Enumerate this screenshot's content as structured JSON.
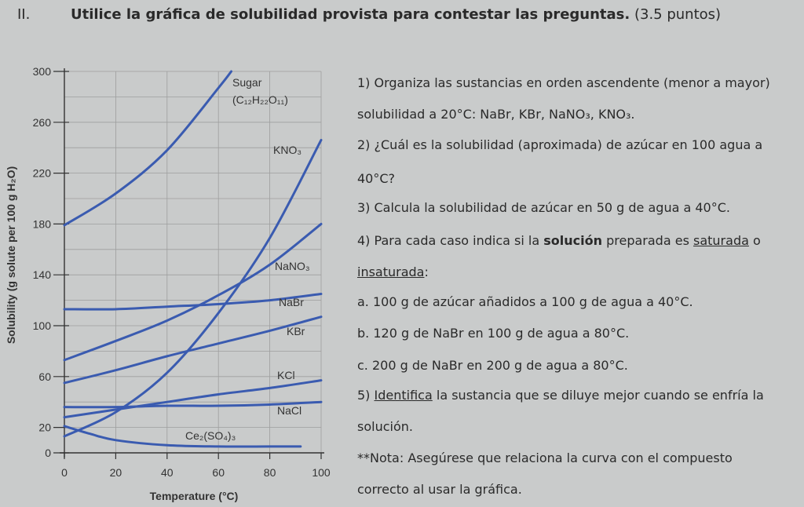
{
  "header": {
    "section": "II.",
    "title": "Utilice la gráfica de solubilidad provista para contestar las preguntas.",
    "points": "(3.5 puntos)"
  },
  "chart_data": {
    "type": "line",
    "xlabel": "Temperature (°C)",
    "ylabel": "Solubility (g solute per 100 g H₂O)",
    "xlim": [
      0,
      100
    ],
    "ylim": [
      0,
      300
    ],
    "xticks": [
      "0",
      "20",
      "40",
      "60",
      "80",
      "100"
    ],
    "yticks": [
      "0",
      "20",
      "60",
      "100",
      "140",
      "180",
      "220",
      "260",
      "300"
    ],
    "grid": true,
    "series": [
      {
        "name": "Sugar",
        "formula": "(C₁₂H₂₂O₁₁)",
        "x": [
          0,
          20,
          40,
          60,
          65
        ],
        "y": [
          179,
          204,
          238,
          287,
          300
        ]
      },
      {
        "name": "KNO₃",
        "x": [
          0,
          20,
          40,
          60,
          80,
          100
        ],
        "y": [
          13,
          32,
          63,
          110,
          169,
          246
        ]
      },
      {
        "name": "NaNO₃",
        "x": [
          0,
          20,
          40,
          60,
          80,
          100
        ],
        "y": [
          73,
          88,
          104,
          124,
          148,
          180
        ]
      },
      {
        "name": "NaBr",
        "x": [
          0,
          20,
          40,
          60,
          80,
          100
        ],
        "y": [
          113,
          113,
          115,
          117,
          120,
          125
        ]
      },
      {
        "name": "KBr",
        "x": [
          0,
          20,
          40,
          60,
          80,
          100
        ],
        "y": [
          55,
          65,
          76,
          86,
          96,
          107
        ]
      },
      {
        "name": "KCl",
        "x": [
          0,
          20,
          40,
          60,
          80,
          100
        ],
        "y": [
          28,
          34,
          40,
          46,
          51,
          57
        ]
      },
      {
        "name": "NaCl",
        "x": [
          0,
          20,
          40,
          60,
          80,
          100
        ],
        "y": [
          36,
          36,
          37,
          37,
          38,
          40
        ]
      },
      {
        "name": "Ce₂(SO₄)₃",
        "x": [
          0,
          10,
          20,
          40,
          60,
          80,
          92
        ],
        "y": [
          21,
          15,
          10,
          6,
          5,
          5,
          5
        ]
      }
    ]
  },
  "questions": {
    "q1a": "1) Organiza las sustancias en orden ascendente (menor a mayor)",
    "q1b": "solubilidad a 20°C: NaBr, KBr, NaNO₃, KNO₃.",
    "q2a": "2) ¿Cuál es la solubilidad (aproximada) de azúcar en 100 agua a",
    "q2b": "40°C?",
    "q3": "3) Calcula la solubilidad de azúcar en 50 g de agua a 40°C.",
    "q4_prefix": "4) Para cada caso indica si la",
    "q4_bold": "solución",
    "q4_mid": "preparada es",
    "q4_sat": "saturada",
    "q4_o": "o",
    "q4_insat": "insaturada",
    "q4_colon": ":",
    "q4a": "a. 100 g de azúcar añadidos a 100 g de agua a 40°C.",
    "q4b": "b. 120 g de NaBr en 100 g de agua a 80°C.",
    "q4c": "c. 200 g de NaBr en 200 g de agua a 80°C.",
    "q5_num": "5)",
    "q5_ident": "Identifica",
    "q5_rest": "la sustancia que se diluye mejor cuando se enfría la",
    "q5b": "solución.",
    "nota_a": "**Nota: Asegúrese que relaciona la curva con el compuesto",
    "nota_b": "correcto al usar la gráfica."
  },
  "colors": {
    "background": "#c9cbcb",
    "curve": "#3a5bb0",
    "grid": "#9e9e9e",
    "text": "#2a2a2a"
  }
}
